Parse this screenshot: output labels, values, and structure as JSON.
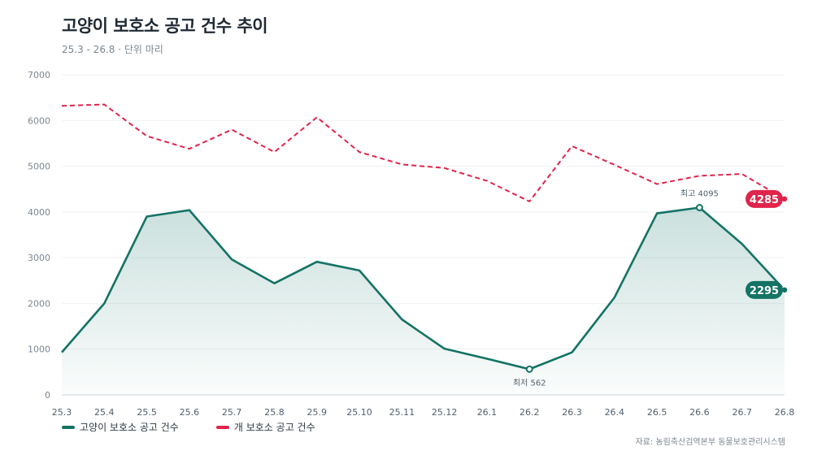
{
  "header": {
    "title": "고양이 보호소 공고 건수 추이",
    "subtitle": "25.3 - 26.8 · 단위 마리"
  },
  "source": "자료: 농림축산검역본부 동물보호관리시스템",
  "chart_data": {
    "type": "line",
    "categories": [
      "25.3",
      "25.4",
      "25.5",
      "25.6",
      "25.7",
      "25.8",
      "25.9",
      "25.10",
      "25.11",
      "25.12",
      "26.1",
      "26.2",
      "26.3",
      "26.4",
      "26.5",
      "26.6",
      "26.7",
      "26.8"
    ],
    "series": [
      {
        "name": "고양이 보호소 공고 건수",
        "color": "#137365",
        "style": "solid-area",
        "values": [
          930,
          2000,
          3900,
          4040,
          2960,
          2440,
          2910,
          2720,
          1650,
          1010,
          790,
          562,
          930,
          2130,
          3970,
          4095,
          3300,
          2295
        ]
      },
      {
        "name": "개 보호소 공고 건수",
        "color": "#e0244a",
        "style": "dashed",
        "values": [
          6320,
          6350,
          5660,
          5380,
          5800,
          5310,
          6070,
          5310,
          5040,
          4960,
          4680,
          4230,
          5440,
          5030,
          4610,
          4790,
          4830,
          4285
        ]
      }
    ],
    "yticks": [
      0,
      1000,
      2000,
      3000,
      4000,
      5000,
      6000,
      7000
    ],
    "ylim": [
      0,
      7000
    ],
    "grid": true,
    "legend_position": "bottom-left",
    "annotations": {
      "max": {
        "label": "최고 4095",
        "series": 0,
        "index": 15
      },
      "min": {
        "label": "최저 562",
        "series": 0,
        "index": 11
      },
      "end_labels": [
        {
          "series": 1,
          "text": "4285"
        },
        {
          "series": 0,
          "text": "2295"
        }
      ]
    }
  }
}
